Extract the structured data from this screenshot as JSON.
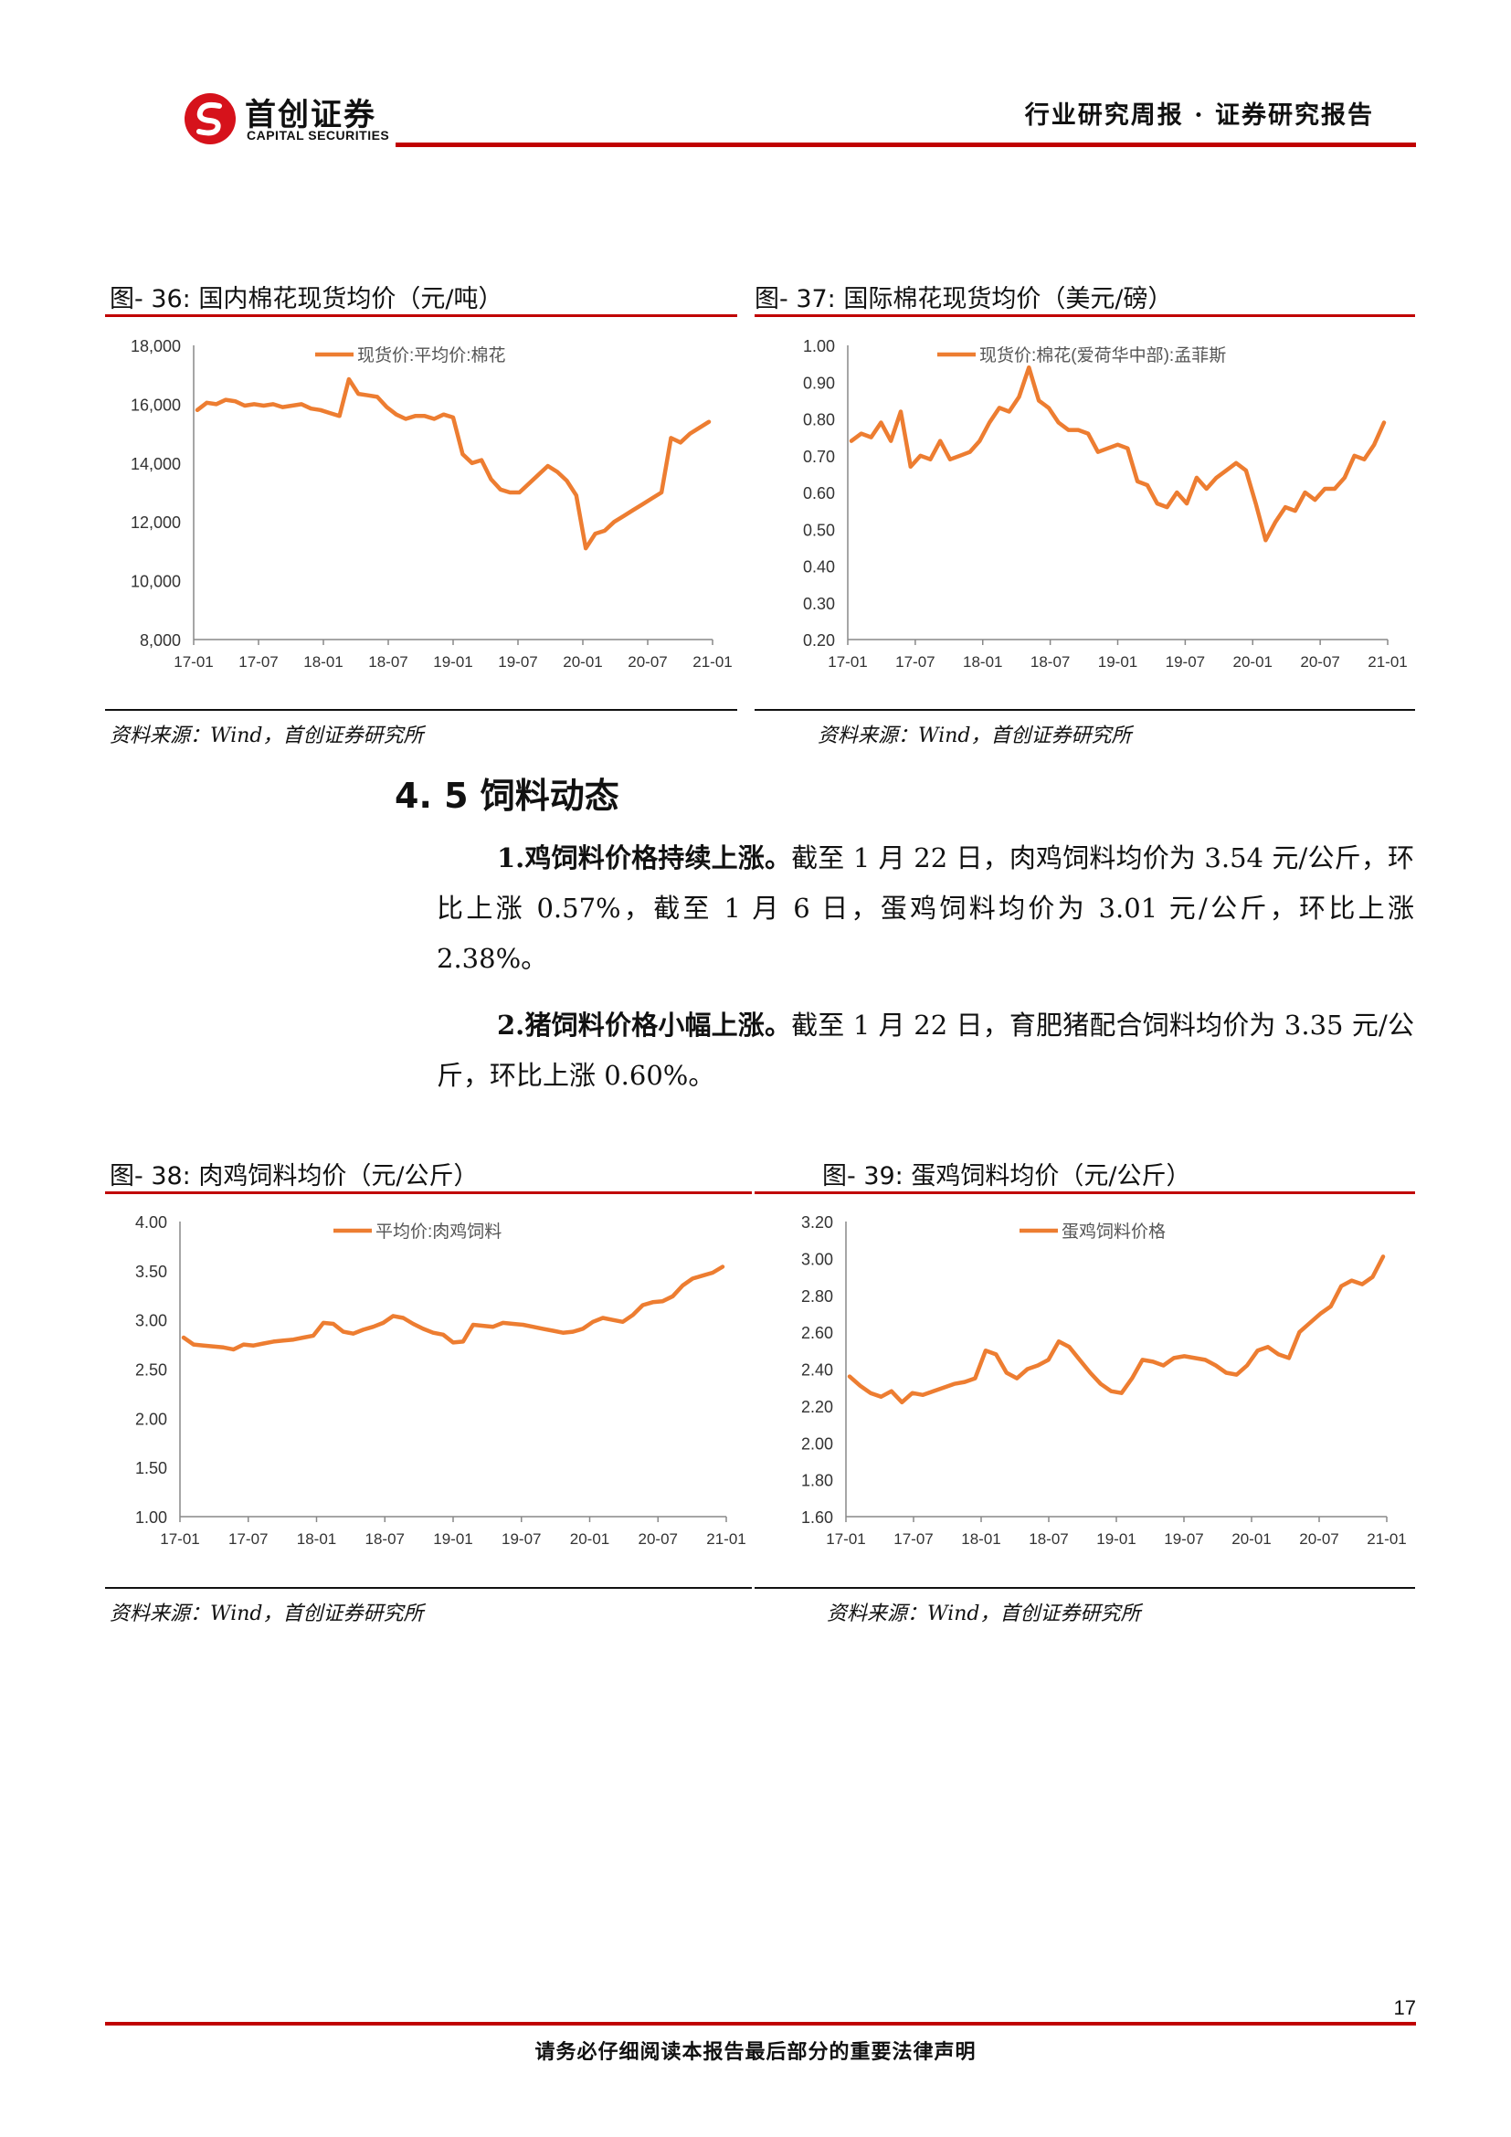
{
  "header": {
    "logo_cn": "首创证券",
    "logo_en": "CAPITAL SECURITIES",
    "title": "行业研究周报 · 证券研究报告"
  },
  "colors": {
    "accent": "#c00000",
    "series": "#ED7D31"
  },
  "figures": [
    {
      "caption": "图- 36:  国内棉花现货均价（元/吨）",
      "source": "资料来源：Wind，首创证券研究所",
      "chart_data": {
        "type": "line",
        "series": [
          {
            "name": "现货价:平均价:棉花",
            "values": [
              15800,
              16050,
              16000,
              16150,
              16100,
              15950,
              16000,
              15950,
              16000,
              15900,
              15950,
              16000,
              15850,
              15800,
              15700,
              15600,
              16850,
              16350,
              16300,
              16250,
              15900,
              15650,
              15500,
              15600,
              15600,
              15500,
              15650,
              15550,
              14300,
              14000,
              14100,
              13450,
              13100,
              13000,
              13000,
              13300,
              13600,
              13900,
              13700,
              13400,
              12900,
              11100,
              11600,
              11700,
              12000,
              12200,
              12400,
              12600,
              12800,
              13000,
              14850,
              14700,
              15000,
              15200,
              15400
            ]
          }
        ],
        "xlabels": [
          "17-01",
          "17-07",
          "18-01",
          "18-07",
          "19-01",
          "19-07",
          "20-01",
          "20-07",
          "21-01"
        ],
        "yticks": [
          "8,000",
          "10,000",
          "12,000",
          "14,000",
          "16,000",
          "18,000"
        ],
        "ylim": [
          8000,
          18000
        ]
      }
    },
    {
      "caption": "图- 37:  国际棉花现货均价（美元/磅）",
      "source": "资料来源：Wind，首创证券研究所",
      "chart_data": {
        "type": "line",
        "series": [
          {
            "name": "现货价:棉花(爱荷华中部):孟菲斯",
            "values": [
              0.74,
              0.76,
              0.75,
              0.79,
              0.74,
              0.82,
              0.67,
              0.7,
              0.69,
              0.74,
              0.69,
              0.7,
              0.71,
              0.74,
              0.79,
              0.83,
              0.82,
              0.86,
              0.94,
              0.85,
              0.83,
              0.79,
              0.77,
              0.77,
              0.76,
              0.71,
              0.72,
              0.73,
              0.72,
              0.63,
              0.62,
              0.57,
              0.56,
              0.6,
              0.57,
              0.64,
              0.61,
              0.64,
              0.66,
              0.68,
              0.66,
              0.57,
              0.47,
              0.52,
              0.56,
              0.55,
              0.6,
              0.58,
              0.61,
              0.61,
              0.64,
              0.7,
              0.69,
              0.73,
              0.79
            ]
          }
        ],
        "xlabels": [
          "17-01",
          "17-07",
          "18-01",
          "18-07",
          "19-01",
          "19-07",
          "20-01",
          "20-07",
          "21-01"
        ],
        "yticks": [
          "0.20",
          "0.30",
          "0.40",
          "0.50",
          "0.60",
          "0.70",
          "0.80",
          "0.90",
          "1.00"
        ],
        "ylim": [
          0.2,
          1.0
        ]
      }
    },
    {
      "caption": "图- 38:  肉鸡饲料均价（元/公斤）",
      "source": "资料来源：Wind，首创证券研究所",
      "chart_data": {
        "type": "line",
        "series": [
          {
            "name": "平均价:肉鸡饲料",
            "values": [
              2.82,
              2.75,
              2.74,
              2.73,
              2.72,
              2.7,
              2.75,
              2.74,
              2.76,
              2.78,
              2.79,
              2.8,
              2.82,
              2.84,
              2.97,
              2.96,
              2.88,
              2.86,
              2.9,
              2.93,
              2.97,
              3.04,
              3.02,
              2.96,
              2.91,
              2.87,
              2.85,
              2.77,
              2.78,
              2.95,
              2.94,
              2.93,
              2.97,
              2.96,
              2.95,
              2.93,
              2.91,
              2.89,
              2.87,
              2.88,
              2.91,
              2.98,
              3.02,
              3.0,
              2.98,
              3.05,
              3.15,
              3.18,
              3.19,
              3.24,
              3.35,
              3.42,
              3.45,
              3.48,
              3.54
            ]
          }
        ],
        "xlabels": [
          "17-01",
          "17-07",
          "18-01",
          "18-07",
          "19-01",
          "19-07",
          "20-01",
          "20-07",
          "21-01"
        ],
        "yticks": [
          "1.00",
          "1.50",
          "2.00",
          "2.50",
          "3.00",
          "3.50",
          "4.00"
        ],
        "ylim": [
          1.0,
          4.0
        ]
      }
    },
    {
      "caption": "图- 39:  蛋鸡饲料均价（元/公斤）",
      "source": "资料来源：Wind，首创证券研究所",
      "chart_data": {
        "type": "line",
        "series": [
          {
            "name": "蛋鸡饲料价格",
            "values": [
              2.36,
              2.31,
              2.27,
              2.25,
              2.28,
              2.22,
              2.27,
              2.26,
              2.28,
              2.3,
              2.32,
              2.33,
              2.35,
              2.5,
              2.48,
              2.38,
              2.35,
              2.4,
              2.42,
              2.45,
              2.55,
              2.52,
              2.45,
              2.38,
              2.32,
              2.28,
              2.27,
              2.35,
              2.45,
              2.44,
              2.42,
              2.46,
              2.47,
              2.46,
              2.45,
              2.42,
              2.38,
              2.37,
              2.42,
              2.5,
              2.52,
              2.48,
              2.46,
              2.6,
              2.65,
              2.7,
              2.74,
              2.85,
              2.88,
              2.86,
              2.9,
              3.01
            ]
          }
        ],
        "xlabels": [
          "17-01",
          "17-07",
          "18-01",
          "18-07",
          "19-01",
          "19-07",
          "20-01",
          "20-07",
          "21-01"
        ],
        "yticks": [
          "1.60",
          "1.80",
          "2.00",
          "2.20",
          "2.40",
          "2.60",
          "2.80",
          "3.00",
          "3.20"
        ],
        "ylim": [
          1.6,
          3.2
        ]
      }
    }
  ],
  "section": {
    "title": "4. 5  饲料动态",
    "paragraphs": [
      {
        "lead": "1.鸡饲料价格持续上涨。",
        "text": "截至 1 月 22 日，肉鸡饲料均价为 3.54 元/公斤，环比上涨 0.57%，截至 1 月 6 日，蛋鸡饲料均价为 3.01 元/公斤，环比上涨 2.38%。"
      },
      {
        "lead": "2.猪饲料价格小幅上涨。",
        "text": "截至 1 月 22 日，育肥猪配合饲料均价为 3.35 元/公斤，环比上涨 0.60%。"
      }
    ]
  },
  "footer": {
    "page": "17",
    "note": "请务必仔细阅读本报告最后部分的重要法律声明"
  }
}
